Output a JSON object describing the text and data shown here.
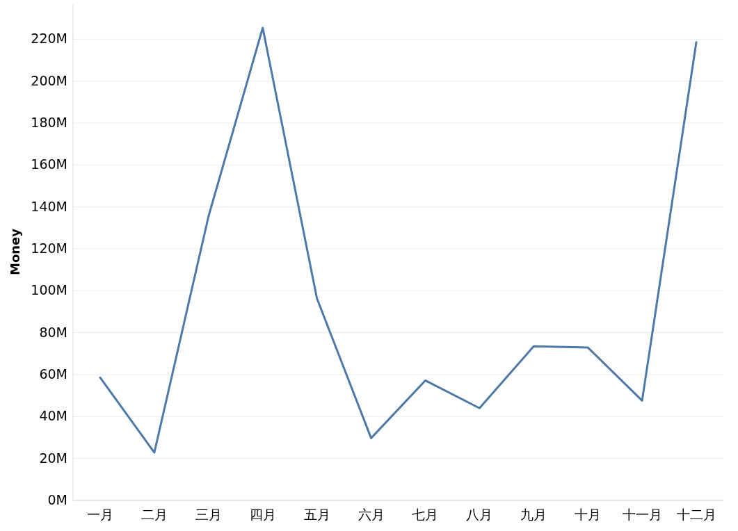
{
  "chart_data": {
    "type": "line",
    "ylabel": "Money",
    "categories": [
      "一月",
      "二月",
      "三月",
      "四月",
      "五月",
      "六月",
      "七月",
      "八月",
      "九月",
      "十月",
      "十一月",
      "十二月"
    ],
    "series": [
      {
        "color": "#4e79a7",
        "values": [
          58.6,
          22.8,
          135.5,
          225.4,
          96.4,
          29.7,
          57.2,
          44.0,
          73.5,
          72.9,
          47.6,
          218.5
        ]
      }
    ],
    "ylim": [
      0,
      237
    ],
    "yticks": [
      {
        "value": 0,
        "label": "0M"
      },
      {
        "value": 20,
        "label": "20M"
      },
      {
        "value": 40,
        "label": "40M"
      },
      {
        "value": 60,
        "label": "60M"
      },
      {
        "value": 80,
        "label": "80M"
      },
      {
        "value": 100,
        "label": "100M"
      },
      {
        "value": 120,
        "label": "120M"
      },
      {
        "value": 140,
        "label": "140M"
      },
      {
        "value": 160,
        "label": "160M"
      },
      {
        "value": 180,
        "label": "180M"
      },
      {
        "value": 200,
        "label": "200M"
      },
      {
        "value": 220,
        "label": "220M"
      }
    ],
    "grid": "y",
    "marker": "none",
    "line_style": "solid"
  }
}
